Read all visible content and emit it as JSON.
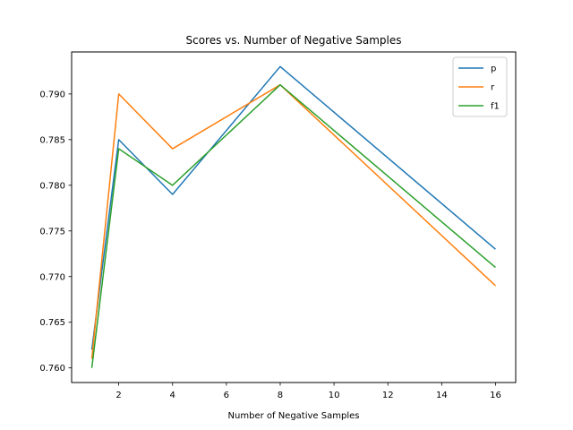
{
  "chart_data": {
    "type": "line",
    "title": "Scores vs. Number of Negative Samples",
    "xlabel": "Number of Negative Samples",
    "ylabel": "",
    "x": [
      1,
      2,
      4,
      8,
      16
    ],
    "xlim": [
      0.25,
      16.75
    ],
    "ylim": [
      0.7584,
      0.7946
    ],
    "xticks": [
      2,
      4,
      6,
      8,
      10,
      12,
      14,
      16
    ],
    "yticks": [
      0.76,
      0.765,
      0.77,
      0.775,
      0.78,
      0.785,
      0.79
    ],
    "xtick_labels": [
      "2",
      "4",
      "6",
      "8",
      "10",
      "12",
      "14",
      "16"
    ],
    "ytick_labels": [
      "0.760",
      "0.765",
      "0.770",
      "0.775",
      "0.780",
      "0.785",
      "0.790"
    ],
    "grid": false,
    "legend_position": "top-right",
    "series": [
      {
        "name": "p",
        "color": "#1f77b4",
        "values": [
          0.762,
          0.785,
          0.779,
          0.793,
          0.773
        ]
      },
      {
        "name": "r",
        "color": "#ff7f0e",
        "values": [
          0.761,
          0.79,
          0.784,
          0.791,
          0.769
        ]
      },
      {
        "name": "f1",
        "color": "#2ca02c",
        "values": [
          0.76,
          0.784,
          0.78,
          0.791,
          0.771
        ]
      }
    ]
  }
}
